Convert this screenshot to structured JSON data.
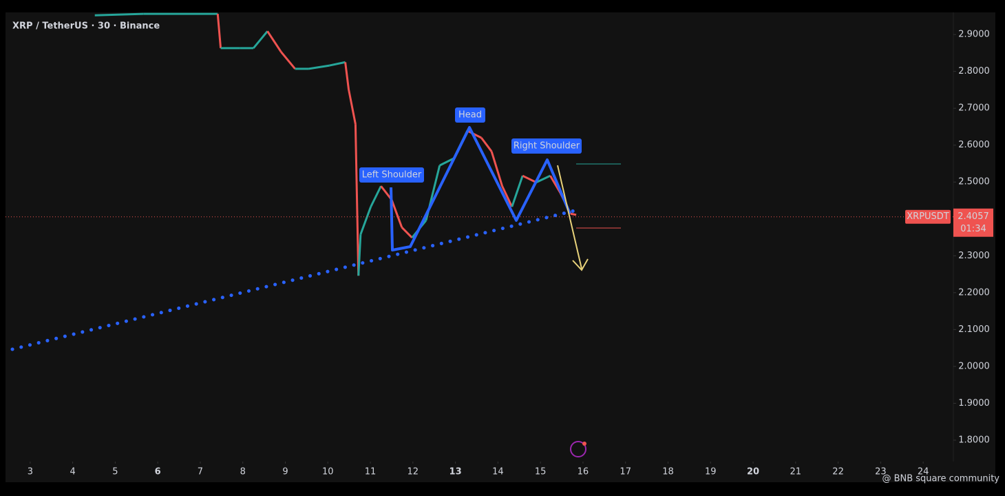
{
  "chart_data": {
    "type": "candlestick",
    "title": "XRP / TetherUS · 30 · Binance",
    "x": [
      4.52,
      5.66,
      7.41,
      7.48,
      7.93,
      8.25,
      8.58,
      8.9,
      9.23,
      9.55,
      10.04,
      10.41,
      10.49,
      10.65,
      10.72,
      10.77,
      11.01,
      11.25,
      11.5,
      11.74,
      11.98,
      12.31,
      12.63,
      12.96,
      13.28,
      13.61,
      13.85,
      14.1,
      14.33,
      14.58,
      14.9,
      15.23,
      15.47,
      15.71,
      15.84
    ],
    "series": [
      {
        "name": "XRPUSDT",
        "values": [
          2.952,
          2.956,
          2.956,
          2.863,
          2.863,
          2.863,
          2.909,
          2.853,
          2.807,
          2.807,
          2.816,
          2.825,
          2.751,
          2.657,
          2.246,
          2.358,
          2.433,
          2.489,
          2.452,
          2.377,
          2.349,
          2.396,
          2.545,
          2.564,
          2.639,
          2.62,
          2.583,
          2.489,
          2.433,
          2.517,
          2.499,
          2.517,
          2.47,
          2.414,
          2.411
        ]
      }
    ],
    "up_color": "#26a69a",
    "down_color": "#ef5350",
    "last_price": 2.4057,
    "countdown": "01:34",
    "annotations": [
      "Left Shoulder",
      "Head",
      "Right Shoulder"
    ],
    "xlim": [
      2.42,
      24.71
    ],
    "xticks": [
      3,
      4,
      5,
      6,
      7,
      8,
      9,
      10,
      11,
      12,
      13,
      14,
      15,
      16,
      17,
      18,
      19,
      20,
      21,
      22,
      23,
      24
    ],
    "ylim": [
      1.742,
      2.96
    ],
    "yticks": [
      {
        "value": 1.8,
        "label": "1.8000"
      },
      {
        "value": 1.9,
        "label": "1.9000"
      },
      {
        "value": 2.0,
        "label": "2.0000"
      },
      {
        "value": 2.1,
        "label": "2.1000"
      },
      {
        "value": 2.2,
        "label": "2.2000"
      },
      {
        "value": 2.3,
        "label": "2.3000"
      },
      {
        "value": 2.4,
        "label": "2.4000"
      },
      {
        "value": 2.5,
        "label": "2.5000"
      },
      {
        "value": 2.6,
        "label": "2.6000"
      },
      {
        "value": 2.7,
        "label": "2.7000"
      },
      {
        "value": 2.8,
        "label": "2.8000"
      },
      {
        "value": 2.9,
        "label": "2.9000"
      }
    ],
    "watermark": "@ BNB square community"
  }
}
